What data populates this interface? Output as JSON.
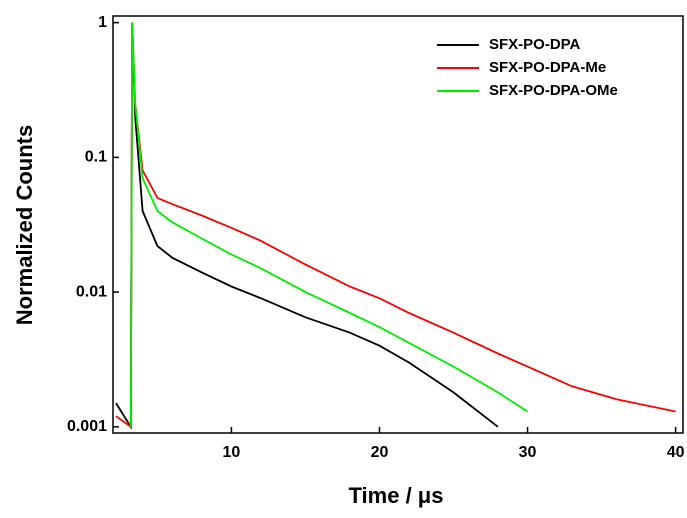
{
  "chart_data": {
    "type": "line",
    "xlabel": "Time / μs",
    "ylabel": "Normalized Counts",
    "x": [
      2.2,
      3.2,
      3.3,
      3.5,
      4,
      5,
      6,
      8,
      10,
      12,
      15,
      18,
      20,
      22,
      25,
      28,
      30,
      33,
      36,
      40
    ],
    "series": [
      {
        "name": "SFX-PO-DPA",
        "color": "#000000",
        "values": [
          0.0015,
          0.001,
          1,
          0.2,
          0.04,
          0.022,
          0.018,
          0.014,
          0.011,
          0.009,
          0.0065,
          0.005,
          0.004,
          0.003,
          0.0018,
          0.001,
          null,
          null,
          null,
          null
        ]
      },
      {
        "name": "SFX-PO-DPA-Me",
        "color": "#ff0000",
        "values": [
          0.0012,
          0.001,
          1,
          0.25,
          0.08,
          0.05,
          0.045,
          0.037,
          0.03,
          0.024,
          0.016,
          0.011,
          0.009,
          0.007,
          0.005,
          0.0035,
          0.0028,
          0.002,
          0.0016,
          0.0013
        ]
      },
      {
        "name": "SFX-PO-DPA-OMe",
        "color": "#00ee00",
        "values": [
          null,
          0.001,
          1,
          0.25,
          0.07,
          0.04,
          0.033,
          0.025,
          0.019,
          0.015,
          0.01,
          0.007,
          0.0055,
          0.0042,
          0.0028,
          0.0018,
          0.0013,
          null,
          null,
          null
        ]
      }
    ],
    "xlim": [
      2,
      40.5
    ],
    "xticks": [
      10,
      20,
      30,
      40
    ],
    "ylim": [
      0.0009,
      1.12
    ],
    "yticks": [
      0.001,
      0.01,
      0.1,
      1
    ],
    "yscale": "log",
    "legend": "upper right"
  }
}
